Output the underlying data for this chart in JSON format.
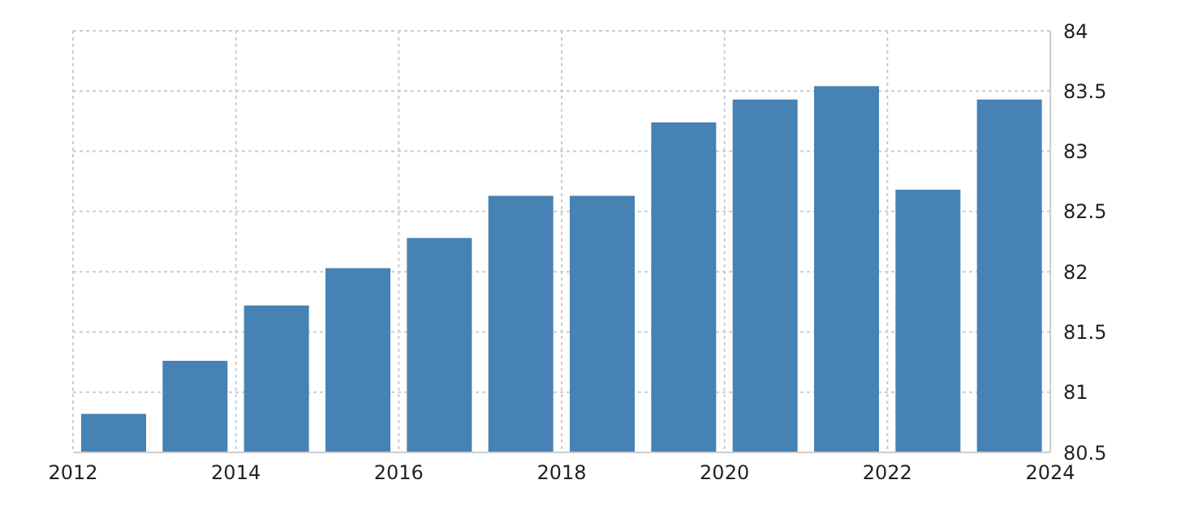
{
  "chart_data": {
    "type": "bar",
    "x": [
      "2012-07",
      "2013-07",
      "2014-07",
      "2015-07",
      "2016-07",
      "2017-07",
      "2018-07",
      "2019-07",
      "2020-07",
      "2021-07",
      "2022-07",
      "2023-07"
    ],
    "values": [
      80.82,
      81.26,
      81.72,
      82.03,
      82.28,
      82.63,
      82.63,
      83.24,
      83.43,
      83.54,
      82.68,
      83.43
    ],
    "color": "#4682b4",
    "xlim": [
      "2012",
      "2024"
    ],
    "xticks": [
      "2012",
      "2014",
      "2016",
      "2018",
      "2020",
      "2022",
      "2024"
    ],
    "ylim": [
      80.5,
      84
    ],
    "yticks": [
      80.5,
      81,
      81.5,
      82,
      82.5,
      83,
      83.5,
      84
    ],
    "grid": true
  }
}
